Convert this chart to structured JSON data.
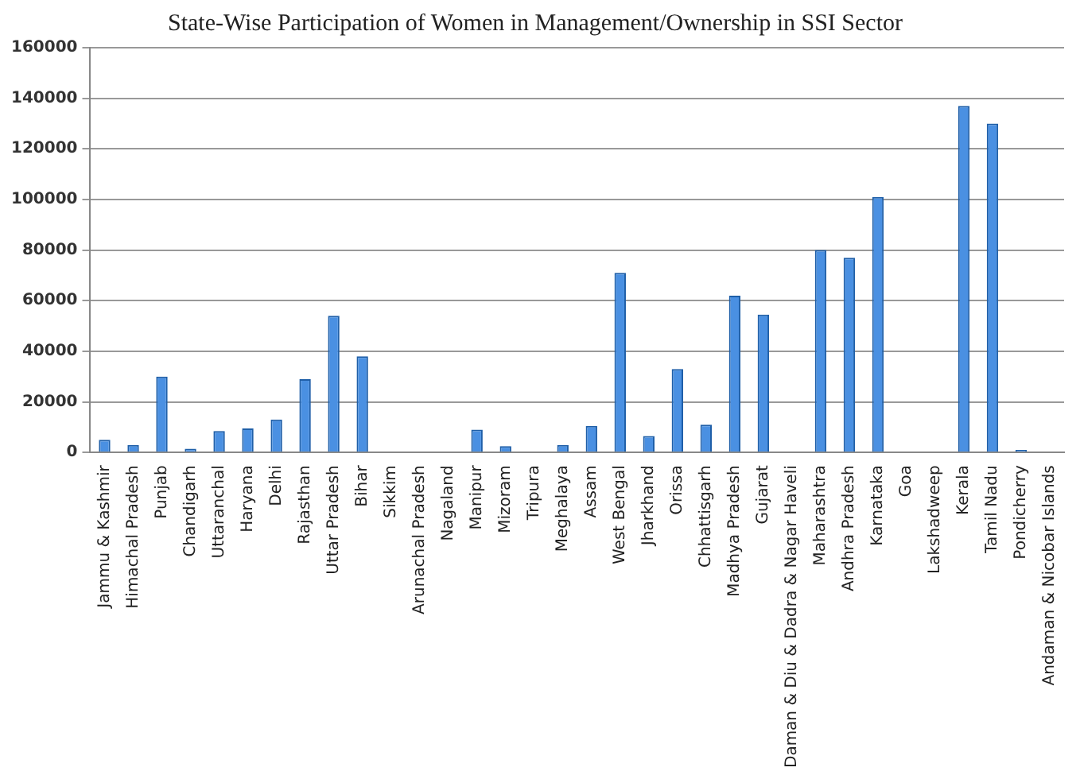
{
  "chart_data": {
    "type": "bar",
    "title": "State-Wise Participation of Women in Management/Ownership in SSI Sector",
    "categories": [
      "Jammu & Kashmir",
      "Himachal Pradesh",
      "Punjab",
      "Chandigarh",
      "Uttaranchal",
      "Haryana",
      "Delhi",
      "Rajasthan",
      "Uttar Pradesh",
      "Bihar",
      "Sikkim",
      "Arunachal Pradesh",
      "Nagaland",
      "Manipur",
      "Mizoram",
      "Tripura",
      "Meghalaya",
      "Assam",
      "West Bengal",
      "Jharkhand",
      "Orissa",
      "Chhattisgarh",
      "Madhya Pradesh",
      "Gujarat",
      "Daman & Diu & Dadra & Nagar Haveli",
      "Maharashtra",
      "Andhra Pradesh",
      "Karnataka",
      "Goa",
      "Lakshadweep",
      "Kerala",
      "Tamil Nadu",
      "Pondicherry",
      "Andaman & Nicobar Islands"
    ],
    "values": [
      5000,
      3000,
      30000,
      1500,
      8500,
      9500,
      13000,
      29000,
      54000,
      38000,
      0,
      0,
      0,
      9000,
      2500,
      0,
      3000,
      10500,
      71000,
      6500,
      33000,
      11000,
      62000,
      54500,
      0,
      80000,
      77000,
      101000,
      0,
      0,
      137000,
      130000,
      1000,
      0
    ],
    "color": "#4a90e2",
    "ylim": [
      0,
      160000
    ],
    "yticks": [
      0,
      20000,
      40000,
      60000,
      80000,
      100000,
      120000,
      140000,
      160000
    ],
    "grid": "y",
    "legend": false
  }
}
